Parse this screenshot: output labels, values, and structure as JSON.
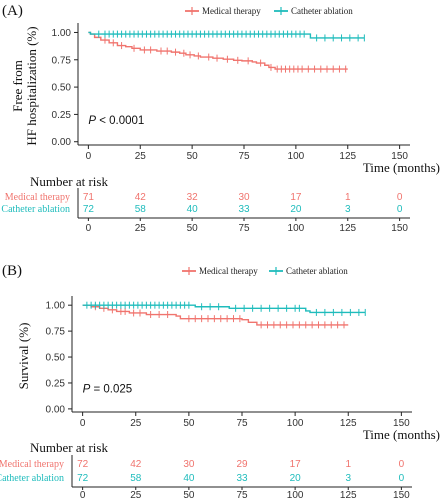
{
  "colors": {
    "medical": "#f0746e",
    "ablation": "#1fbcbc",
    "axis": "#222222"
  },
  "chart_data": [
    {
      "type": "line",
      "subtype": "kaplan-meier",
      "panel_label": "(A)",
      "legend": [
        "Medical therapy",
        "Catheter ablation"
      ],
      "legend_position": "top",
      "ylabel": "Free from HF hospitalization (%)",
      "ylabel_lines": [
        "Free from",
        "HF hospitalization (%)"
      ],
      "xlabel": "Time (months)",
      "xlim": [
        -5,
        155
      ],
      "ylim": [
        -0.03,
        1.05
      ],
      "xticks": [
        "0",
        "25",
        "50",
        "75",
        "100",
        "125",
        "150"
      ],
      "yticks": [
        "0.00",
        "0.25",
        "0.50",
        "0.75",
        "1.00"
      ],
      "annotation": "P < 0.0001",
      "annotation_parts": [
        "P",
        " < 0.0001"
      ],
      "risk_table": {
        "title": "Number at risk",
        "times": [
          "0",
          "25",
          "50",
          "75",
          "100",
          "125",
          "150"
        ],
        "rows": [
          {
            "label": "Medical therapy",
            "values": [
              "71",
              "42",
              "32",
              "30",
              "17",
              "1",
              "0"
            ]
          },
          {
            "label": "Catheter ablation",
            "values": [
              "72",
              "58",
              "40",
              "33",
              "20",
              "3",
              "0"
            ]
          }
        ]
      },
      "series": [
        {
          "name": "Medical therapy",
          "steps": [
            [
              0,
              1.0
            ],
            [
              1,
              0.985
            ],
            [
              3,
              0.955
            ],
            [
              6,
              0.93
            ],
            [
              10,
              0.905
            ],
            [
              14,
              0.88
            ],
            [
              18,
              0.87
            ],
            [
              21,
              0.855
            ],
            [
              25,
              0.84
            ],
            [
              33,
              0.83
            ],
            [
              40,
              0.82
            ],
            [
              44,
              0.81
            ],
            [
              47,
              0.795
            ],
            [
              51,
              0.785
            ],
            [
              54,
              0.775
            ],
            [
              60,
              0.765
            ],
            [
              65,
              0.755
            ],
            [
              70,
              0.745
            ],
            [
              74,
              0.74
            ],
            [
              79,
              0.73
            ],
            [
              81,
              0.72
            ],
            [
              85,
              0.7
            ],
            [
              87,
              0.68
            ],
            [
              90,
              0.665
            ],
            [
              125,
              0.665
            ]
          ],
          "censor": [
            8,
            12,
            16,
            22,
            27,
            30,
            35,
            38,
            42,
            46,
            49,
            53,
            58,
            62,
            67,
            72,
            77,
            83,
            88,
            91,
            93,
            95,
            97,
            99,
            101,
            103,
            106,
            109,
            112,
            115,
            118,
            121,
            124
          ]
        },
        {
          "name": "Catheter ablation",
          "steps": [
            [
              0,
              1.0
            ],
            [
              1,
              0.985
            ],
            [
              106,
              0.985
            ],
            [
              107,
              0.95
            ],
            [
              133,
              0.95
            ]
          ],
          "censor": [
            5,
            8,
            10,
            12,
            14,
            16,
            18,
            20,
            22,
            24,
            26,
            28,
            30,
            32,
            34,
            36,
            38,
            40,
            42,
            44,
            46,
            48,
            50,
            52,
            54,
            56,
            58,
            60,
            62,
            64,
            66,
            68,
            70,
            72,
            74,
            76,
            78,
            80,
            82,
            84,
            86,
            88,
            90,
            92,
            94,
            96,
            98,
            100,
            102,
            104,
            110,
            114,
            118,
            122,
            126,
            130,
            133
          ]
        }
      ]
    },
    {
      "type": "line",
      "subtype": "kaplan-meier",
      "panel_label": "(B)",
      "legend": [
        "Medical therapy",
        "Catheter ablation"
      ],
      "legend_position": "top",
      "ylabel": "Survival (%)",
      "ylabel_lines": [
        "Survival (%)"
      ],
      "xlabel": "Time (months)",
      "xlim": [
        -5,
        155
      ],
      "ylim": [
        -0.03,
        1.05
      ],
      "xticks": [
        "0",
        "25",
        "50",
        "75",
        "100",
        "125",
        "150"
      ],
      "yticks": [
        "0.00",
        "0.25",
        "0.50",
        "0.75",
        "1.00"
      ],
      "annotation": "P = 0.025",
      "annotation_parts": [
        "P",
        " = 0.025"
      ],
      "risk_table": {
        "title": "Number at risk",
        "times": [
          "0",
          "25",
          "50",
          "75",
          "100",
          "125",
          "150"
        ],
        "rows": [
          {
            "label": "Medical therapy",
            "values": [
              "72",
              "42",
              "30",
              "29",
              "17",
              "1",
              "0"
            ]
          },
          {
            "label": "Catheter ablation",
            "values": [
              "72",
              "58",
              "40",
              "33",
              "20",
              "3",
              "0"
            ]
          }
        ]
      },
      "series": [
        {
          "name": "Medical therapy",
          "steps": [
            [
              0,
              1.0
            ],
            [
              4,
              0.985
            ],
            [
              8,
              0.97
            ],
            [
              12,
              0.955
            ],
            [
              16,
              0.94
            ],
            [
              22,
              0.925
            ],
            [
              30,
              0.91
            ],
            [
              44,
              0.895
            ],
            [
              46,
              0.87
            ],
            [
              75,
              0.86
            ],
            [
              78,
              0.835
            ],
            [
              82,
              0.81
            ],
            [
              125,
              0.81
            ]
          ],
          "censor": [
            6,
            10,
            14,
            18,
            20,
            24,
            27,
            32,
            36,
            40,
            50,
            53,
            56,
            59,
            62,
            65,
            68,
            71,
            74,
            84,
            87,
            90,
            93,
            96,
            99,
            102,
            105,
            108,
            111,
            114,
            117,
            120,
            123
          ]
        },
        {
          "name": "Catheter ablation",
          "steps": [
            [
              0,
              1.0
            ],
            [
              52,
              1.0
            ],
            [
              53,
              0.985
            ],
            [
              68,
              0.985
            ],
            [
              69,
              0.97
            ],
            [
              104,
              0.97
            ],
            [
              105,
              0.945
            ],
            [
              107,
              0.93
            ],
            [
              133,
              0.93
            ]
          ],
          "censor": [
            2,
            4,
            6,
            8,
            10,
            12,
            14,
            16,
            18,
            20,
            22,
            24,
            26,
            28,
            30,
            32,
            34,
            36,
            38,
            40,
            42,
            44,
            46,
            48,
            50,
            56,
            60,
            64,
            72,
            76,
            80,
            84,
            88,
            92,
            96,
            100,
            102,
            110,
            114,
            118,
            122,
            126,
            130,
            133
          ]
        }
      ]
    }
  ]
}
